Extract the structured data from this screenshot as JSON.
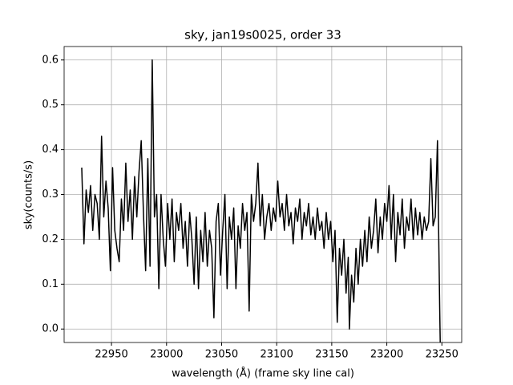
{
  "chart_data": {
    "type": "line",
    "title": "sky, jan19s0025, order 33",
    "xlabel": "wavelength (Å) (frame sky line cal)",
    "ylabel": "sky(counts/s)",
    "grid": true,
    "xlim": [
      22907,
      23268
    ],
    "ylim": [
      -0.03,
      0.63
    ],
    "xticks": [
      22950,
      23000,
      23050,
      23100,
      23150,
      23200,
      23250
    ],
    "yticks": [
      {
        "value": 0,
        "label": "0.0"
      },
      0.1,
      0.2,
      0.3,
      0.4,
      0.5,
      0.6
    ],
    "x": [
      22923,
      22925,
      22927,
      22929,
      22931,
      22933,
      22935,
      22937,
      22939,
      22941,
      22943,
      22945,
      22947,
      22949,
      22951,
      22953,
      22955,
      22957,
      22959,
      22961,
      22963,
      22965,
      22967,
      22969,
      22971,
      22973,
      22975,
      22977,
      22979,
      22981,
      22983,
      22985,
      22987,
      22989,
      22991,
      22993,
      22995,
      22997,
      22999,
      23001,
      23003,
      23005,
      23007,
      23009,
      23011,
      23013,
      23015,
      23017,
      23019,
      23021,
      23023,
      23025,
      23027,
      23029,
      23031,
      23033,
      23035,
      23037,
      23039,
      23041,
      23043,
      23045,
      23047,
      23049,
      23051,
      23053,
      23055,
      23057,
      23059,
      23061,
      23063,
      23065,
      23067,
      23069,
      23071,
      23073,
      23075,
      23077,
      23079,
      23081,
      23083,
      23085,
      23087,
      23089,
      23091,
      23093,
      23095,
      23097,
      23099,
      23101,
      23103,
      23105,
      23107,
      23109,
      23111,
      23113,
      23115,
      23117,
      23119,
      23121,
      23123,
      23125,
      23127,
      23129,
      23131,
      23133,
      23135,
      23137,
      23139,
      23141,
      23143,
      23145,
      23147,
      23149,
      23151,
      23153,
      23155,
      23157,
      23159,
      23161,
      23163,
      23165,
      23166,
      23168,
      23170,
      23172,
      23174,
      23176,
      23178,
      23180,
      23182,
      23184,
      23186,
      23188,
      23190,
      23192,
      23194,
      23196,
      23198,
      23200,
      23202,
      23204,
      23206,
      23208,
      23210,
      23212,
      23214,
      23216,
      23218,
      23220,
      23222,
      23224,
      23226,
      23228,
      23230,
      23232,
      23234,
      23236,
      23238,
      23240,
      23242,
      23244,
      23246,
      23247,
      23248,
      23248.5
    ],
    "series": [
      {
        "color": "#000000",
        "values": [
          0.36,
          0.19,
          0.31,
          0.26,
          0.32,
          0.22,
          0.3,
          0.28,
          0.2,
          0.43,
          0.25,
          0.33,
          0.27,
          0.13,
          0.36,
          0.22,
          0.18,
          0.15,
          0.29,
          0.22,
          0.37,
          0.24,
          0.31,
          0.2,
          0.34,
          0.25,
          0.35,
          0.42,
          0.26,
          0.13,
          0.38,
          0.14,
          0.6,
          0.25,
          0.3,
          0.09,
          0.3,
          0.2,
          0.14,
          0.28,
          0.2,
          0.29,
          0.15,
          0.26,
          0.22,
          0.28,
          0.18,
          0.24,
          0.14,
          0.26,
          0.2,
          0.1,
          0.25,
          0.09,
          0.22,
          0.15,
          0.26,
          0.14,
          0.22,
          0.18,
          0.025,
          0.24,
          0.28,
          0.12,
          0.22,
          0.3,
          0.09,
          0.25,
          0.2,
          0.27,
          0.09,
          0.23,
          0.18,
          0.28,
          0.22,
          0.26,
          0.04,
          0.3,
          0.24,
          0.28,
          0.37,
          0.23,
          0.3,
          0.2,
          0.25,
          0.28,
          0.22,
          0.27,
          0.24,
          0.33,
          0.25,
          0.28,
          0.22,
          0.3,
          0.23,
          0.26,
          0.19,
          0.27,
          0.24,
          0.29,
          0.2,
          0.26,
          0.23,
          0.28,
          0.21,
          0.25,
          0.2,
          0.27,
          0.22,
          0.24,
          0.18,
          0.26,
          0.2,
          0.24,
          0.15,
          0.22,
          0.015,
          0.18,
          0.12,
          0.2,
          0.08,
          0.16,
          0.0,
          0.12,
          0.06,
          0.18,
          0.1,
          0.2,
          0.14,
          0.22,
          0.15,
          0.25,
          0.18,
          0.22,
          0.29,
          0.17,
          0.25,
          0.2,
          0.28,
          0.24,
          0.32,
          0.2,
          0.3,
          0.15,
          0.26,
          0.21,
          0.29,
          0.18,
          0.25,
          0.22,
          0.29,
          0.2,
          0.27,
          0.21,
          0.26,
          0.2,
          0.25,
          0.22,
          0.24,
          0.38,
          0.23,
          0.25,
          0.42,
          0.23,
          0.05,
          -0.03
        ]
      }
    ]
  }
}
